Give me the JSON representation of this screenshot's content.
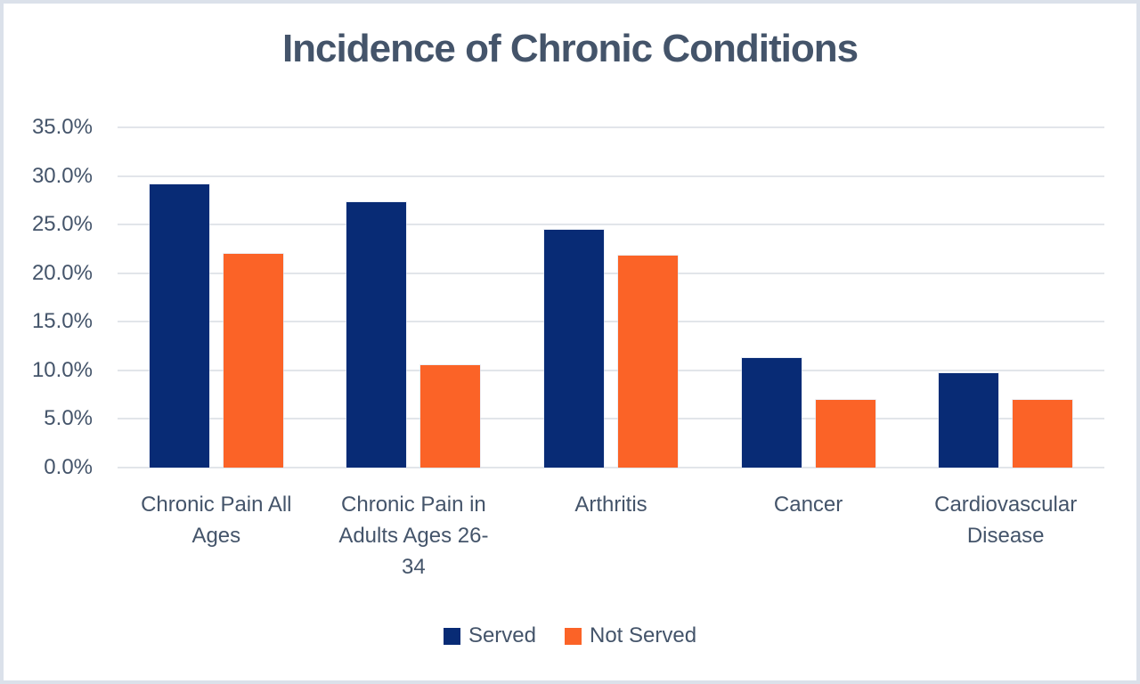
{
  "chart_data": {
    "type": "bar",
    "title": "Incidence of Chronic Conditions",
    "categories": [
      "Chronic Pain All\nAges",
      "Chronic Pain in\nAdults Ages 26-\n34",
      "Arthritis",
      "Cancer",
      "Cardiovascular\nDisease"
    ],
    "series": [
      {
        "name": "Served",
        "color": "#082b75",
        "values": [
          29.1,
          27.3,
          24.5,
          11.3,
          9.7
        ]
      },
      {
        "name": "Not Served",
        "color": "#fb6327",
        "values": [
          22.0,
          10.5,
          21.8,
          7.0,
          7.0
        ]
      }
    ],
    "xlabel": "",
    "ylabel": "",
    "ylim": [
      0,
      35
    ],
    "ytick_step": 5,
    "ytick_format": "percent_one_decimal",
    "grid": true,
    "legend_position": "bottom"
  },
  "colors": {
    "served": "#082b75",
    "not_served": "#fb6327",
    "text": "#44546a",
    "gridline": "#e2e5ea",
    "frame_border": "#dbe1ea",
    "background": "#ffffff"
  }
}
